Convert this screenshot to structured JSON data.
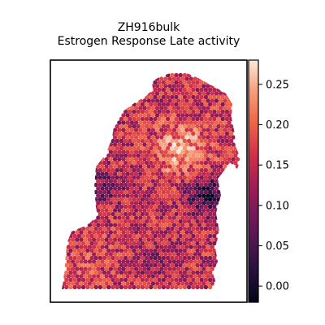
{
  "chart_data": {
    "type": "heatmap",
    "title": "ZH916bulk",
    "subtitle": "Estrogen Response Late activity",
    "xlabel": "",
    "ylabel": "",
    "grid": false,
    "colormap": "rocket",
    "colorbar": {
      "range": [
        -0.02,
        0.28
      ],
      "ticks": [
        0.0,
        0.05,
        0.1,
        0.15,
        0.2,
        0.25
      ],
      "tick_labels": [
        "0.00",
        "0.05",
        "0.10",
        "0.15",
        "0.20",
        "0.25"
      ]
    },
    "spatial_regions": [
      {
        "region": "upper center",
        "mean_activity": 0.24
      },
      {
        "region": "right edge (upper-middle)",
        "mean_activity": 0.03
      },
      {
        "region": "left flank",
        "mean_activity": 0.09
      },
      {
        "region": "lower left",
        "mean_activity": 0.17
      },
      {
        "region": "lower center",
        "mean_activity": 0.12
      },
      {
        "region": "overall",
        "mean_activity": 0.15
      }
    ]
  }
}
